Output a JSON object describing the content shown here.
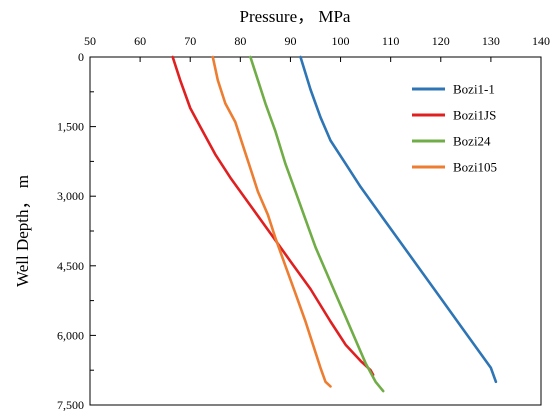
{
  "chart_data": {
    "type": "line",
    "title": "",
    "xlabel": "Pressure， MPa",
    "ylabel": "Well Depth， m",
    "xlim": [
      50,
      140
    ],
    "ylim": [
      0,
      7500
    ],
    "x_ticks": [
      50,
      60,
      70,
      80,
      90,
      100,
      110,
      120,
      130,
      140
    ],
    "x_tick_labels": [
      "50",
      "60",
      "70",
      "80",
      "90",
      "100",
      "110",
      "120",
      "130",
      "140"
    ],
    "y_ticks": [
      0,
      1500,
      3000,
      4500,
      6000,
      7500
    ],
    "y_tick_labels": [
      "0",
      "1,500",
      "3,000",
      "4,500",
      "6,000",
      "7,500"
    ],
    "x_axis_position": "top",
    "y_axis_inverted": true,
    "grid": false,
    "legend_position": "top-right",
    "series": [
      {
        "name": "Bozi1-1",
        "color": "#2e75b6",
        "points": [
          [
            92,
            0
          ],
          [
            94,
            700
          ],
          [
            96,
            1300
          ],
          [
            98,
            1800
          ],
          [
            101,
            2300
          ],
          [
            104,
            2800
          ],
          [
            108,
            3400
          ],
          [
            112,
            4000
          ],
          [
            116,
            4600
          ],
          [
            120,
            5200
          ],
          [
            124,
            5800
          ],
          [
            128,
            6400
          ],
          [
            130,
            6700
          ],
          [
            131,
            7000
          ]
        ]
      },
      {
        "name": "Bozi1JS",
        "color": "#e02020",
        "points": [
          [
            66.5,
            0
          ],
          [
            68,
            500
          ],
          [
            70,
            1100
          ],
          [
            72,
            1500
          ],
          [
            75,
            2100
          ],
          [
            78,
            2600
          ],
          [
            82,
            3200
          ],
          [
            86,
            3800
          ],
          [
            90,
            4400
          ],
          [
            94,
            5000
          ],
          [
            98,
            5700
          ],
          [
            101,
            6200
          ],
          [
            104,
            6550
          ],
          [
            106,
            6750
          ],
          [
            106.5,
            6850
          ]
        ]
      },
      {
        "name": "Bozi24",
        "color": "#70ad47",
        "points": [
          [
            82,
            0
          ],
          [
            83.5,
            500
          ],
          [
            85,
            1000
          ],
          [
            87,
            1600
          ],
          [
            89,
            2300
          ],
          [
            91,
            2900
          ],
          [
            93,
            3500
          ],
          [
            95,
            4100
          ],
          [
            97,
            4600
          ],
          [
            99,
            5100
          ],
          [
            101,
            5600
          ],
          [
            103,
            6100
          ],
          [
            105,
            6600
          ],
          [
            107,
            7000
          ],
          [
            108.5,
            7200
          ]
        ]
      },
      {
        "name": "Bozi105",
        "color": "#ed7d31",
        "points": [
          [
            74.5,
            0
          ],
          [
            75.5,
            500
          ],
          [
            77,
            1000
          ],
          [
            79,
            1400
          ],
          [
            80.5,
            1900
          ],
          [
            82,
            2400
          ],
          [
            83.5,
            2900
          ],
          [
            85.5,
            3400
          ],
          [
            87,
            3900
          ],
          [
            89,
            4500
          ],
          [
            91,
            5100
          ],
          [
            93,
            5700
          ],
          [
            94.5,
            6200
          ],
          [
            96,
            6700
          ],
          [
            97,
            7000
          ],
          [
            98,
            7100
          ]
        ]
      }
    ]
  }
}
